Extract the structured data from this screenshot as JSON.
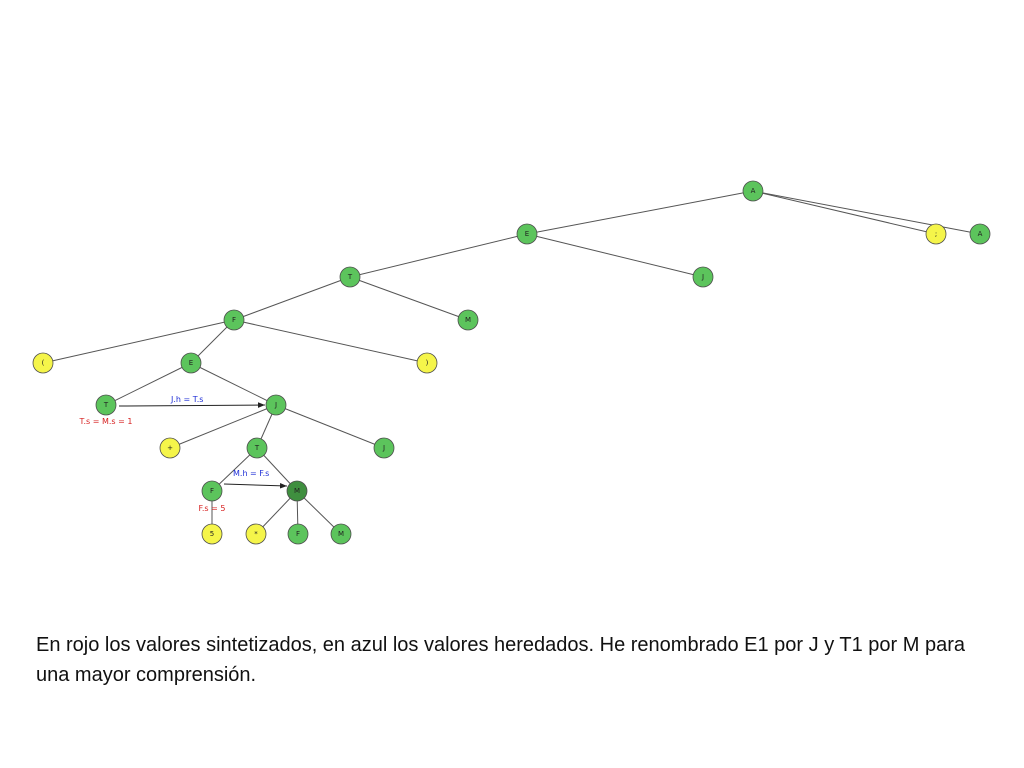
{
  "colors": {
    "green": "#5cc45c",
    "dark_green": "#3f8f3f",
    "yellow": "#f5f54a",
    "edge": "#555555",
    "inherited": "#1f2fd6",
    "synthesized": "#d61f1f"
  },
  "nodes": [
    {
      "id": "A_root",
      "label": "A",
      "color": "green"
    },
    {
      "id": "semicolon",
      "label": ";",
      "color": "yellow"
    },
    {
      "id": "A_right",
      "label": "A",
      "color": "green"
    },
    {
      "id": "E_top",
      "label": "E",
      "color": "green"
    },
    {
      "id": "J_top",
      "label": "J",
      "color": "green"
    },
    {
      "id": "T_top",
      "label": "T",
      "color": "green"
    },
    {
      "id": "M_top",
      "label": "M",
      "color": "green"
    },
    {
      "id": "F_top",
      "label": "F",
      "color": "green"
    },
    {
      "id": "lparen",
      "label": "(",
      "color": "yellow"
    },
    {
      "id": "E_mid",
      "label": "E",
      "color": "green"
    },
    {
      "id": "rparen",
      "label": ")",
      "color": "yellow"
    },
    {
      "id": "T_mid",
      "label": "T",
      "color": "green"
    },
    {
      "id": "J_mid",
      "label": "J",
      "color": "green"
    },
    {
      "id": "plus",
      "label": "+",
      "color": "yellow"
    },
    {
      "id": "T_low",
      "label": "T",
      "color": "green"
    },
    {
      "id": "J_low",
      "label": "J",
      "color": "green"
    },
    {
      "id": "F_low",
      "label": "F",
      "color": "green"
    },
    {
      "id": "M_low",
      "label": "M",
      "color": "dark_green"
    },
    {
      "id": "five",
      "label": "5",
      "color": "yellow"
    },
    {
      "id": "star",
      "label": "*",
      "color": "yellow"
    },
    {
      "id": "F_leaf",
      "label": "F",
      "color": "green"
    },
    {
      "id": "M_leaf",
      "label": "M",
      "color": "green"
    }
  ],
  "edges": [
    [
      "A_root",
      "semicolon"
    ],
    [
      "A_root",
      "A_right"
    ],
    [
      "A_root",
      "E_top"
    ],
    [
      "E_top",
      "T_top"
    ],
    [
      "E_top",
      "J_top"
    ],
    [
      "T_top",
      "F_top"
    ],
    [
      "T_top",
      "M_top"
    ],
    [
      "F_top",
      "lparen"
    ],
    [
      "F_top",
      "E_mid"
    ],
    [
      "F_top",
      "rparen"
    ],
    [
      "E_mid",
      "T_mid"
    ],
    [
      "E_mid",
      "J_mid"
    ],
    [
      "J_mid",
      "plus"
    ],
    [
      "J_mid",
      "T_low"
    ],
    [
      "J_mid",
      "J_low"
    ],
    [
      "T_low",
      "F_low"
    ],
    [
      "T_low",
      "M_low"
    ],
    [
      "F_low",
      "five"
    ],
    [
      "M_low",
      "star"
    ],
    [
      "M_low",
      "F_leaf"
    ],
    [
      "M_low",
      "M_leaf"
    ]
  ],
  "annotations": {
    "inherited_1": "J.h = T.s",
    "synthesized_1": "T.s = M.s = 1",
    "inherited_2": "M.h = F.s",
    "synthesized_2": "F.s = 5"
  },
  "caption": "En rojo los valores sintetizados, en azul los valores heredados. He renombrado E1 por J y T1 por M para una mayor comprensión."
}
